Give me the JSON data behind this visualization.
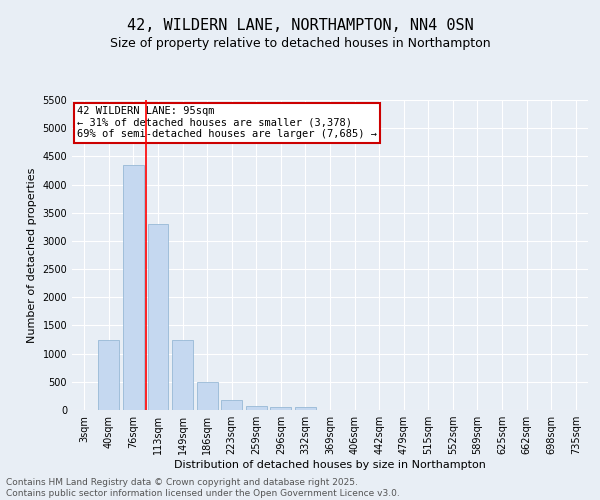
{
  "title": "42, WILDERN LANE, NORTHAMPTON, NN4 0SN",
  "subtitle": "Size of property relative to detached houses in Northampton",
  "xlabel": "Distribution of detached houses by size in Northampton",
  "ylabel": "Number of detached properties",
  "categories": [
    "3sqm",
    "40sqm",
    "76sqm",
    "113sqm",
    "149sqm",
    "186sqm",
    "223sqm",
    "259sqm",
    "296sqm",
    "332sqm",
    "369sqm",
    "406sqm",
    "442sqm",
    "479sqm",
    "515sqm",
    "552sqm",
    "589sqm",
    "625sqm",
    "662sqm",
    "698sqm",
    "735sqm"
  ],
  "values": [
    0,
    1250,
    4350,
    3300,
    1250,
    500,
    175,
    75,
    50,
    50,
    0,
    0,
    0,
    0,
    0,
    0,
    0,
    0,
    0,
    0,
    0
  ],
  "bar_color": "#c5d8f0",
  "bar_edge_color": "#8ab0d0",
  "red_line_x": 2.5,
  "annotation_line1": "42 WILDERN LANE: 95sqm",
  "annotation_line2": "← 31% of detached houses are smaller (3,378)",
  "annotation_line3": "69% of semi-detached houses are larger (7,685) →",
  "annotation_box_color": "#ffffff",
  "annotation_box_edge": "#cc0000",
  "ylim": [
    0,
    5500
  ],
  "yticks": [
    0,
    500,
    1000,
    1500,
    2000,
    2500,
    3000,
    3500,
    4000,
    4500,
    5000,
    5500
  ],
  "background_color": "#e8eef5",
  "plot_bg_color": "#e8eef5",
  "grid_color": "#ffffff",
  "footer1": "Contains HM Land Registry data © Crown copyright and database right 2025.",
  "footer2": "Contains public sector information licensed under the Open Government Licence v3.0.",
  "title_fontsize": 11,
  "subtitle_fontsize": 9,
  "label_fontsize": 8,
  "tick_fontsize": 7,
  "annotation_fontsize": 7.5,
  "footer_fontsize": 6.5
}
